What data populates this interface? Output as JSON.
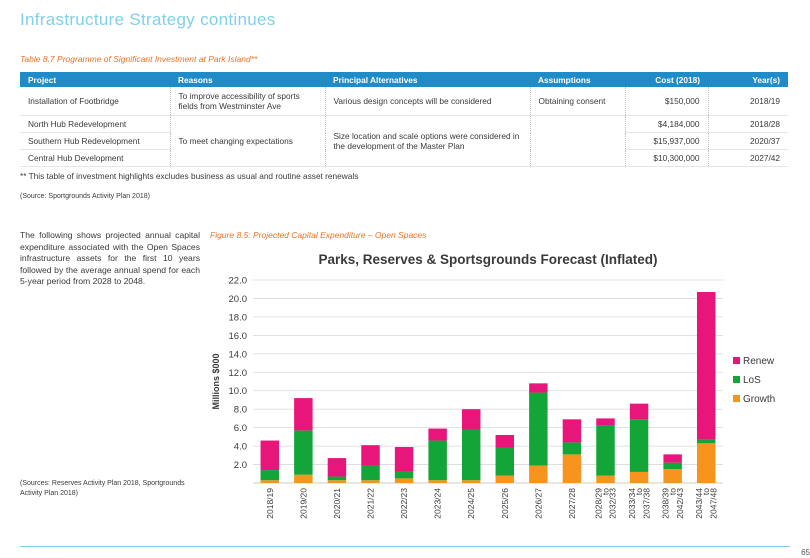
{
  "heading": "Infrastructure Strategy continues",
  "table_caption": "Table 8.7  Programme of Significant Investment at Park Island**",
  "table": {
    "headers": [
      "Project",
      "Reasons",
      "Principal Alternatives",
      "Assumptions",
      "Cost (2018)",
      "Year(s)"
    ],
    "rows": [
      {
        "project": "Installation of Footbridge",
        "reason": "To improve accessibility of sports fields from Westminster Ave",
        "alternatives": "Various design concepts will be considered",
        "assumptions": "Obtaining consent",
        "cost": "$150,000",
        "years": "2018/19"
      },
      {
        "project": "North Hub Redevelopment",
        "cost": "$4,184,000",
        "years": "2018/28"
      },
      {
        "project": "Southern Hub Redevelopment",
        "cost": "$15,937,000",
        "years": "2020/37"
      },
      {
        "project": "Central Hub Development",
        "cost": "$10,300,000",
        "years": "2027/42"
      }
    ],
    "group_reason": "To meet changing expectations",
    "group_alternatives": "Size location and scale options were considered in the development of the Master Plan"
  },
  "footnote": "** This table of investment highlights excludes business as usual and routine asset renewals",
  "source1": "(Source:  Sportgrounds Activity Plan 2018)",
  "intro_text": "The following shows projected annual capital expenditure associated with the Open Spaces infrastructure assets for the first 10 years followed by the average annual spend for each 5-year period from 2028 to 2048.",
  "sources2": "(Sources: Reserves Activity Plan 2018, Sportgrounds Activity Plan 2018)",
  "figure_caption": "Figure 8.5:  Projected Capital Expenditure – Open Spaces",
  "page_number": "65",
  "chart_data": {
    "type": "bar",
    "stacked": true,
    "title": "Parks, Reserves & Sportsgrounds Forecast (Inflated)",
    "ylabel": "Millions $000",
    "ylim": [
      0,
      22
    ],
    "yticks": [
      "2.0",
      "4.0",
      "6.0",
      "8.0",
      "10.0",
      "12.0",
      "14.0",
      "16.0",
      "18.0",
      "20.0",
      "22.0"
    ],
    "grid": true,
    "legend_position": "right",
    "categories": [
      "2018/19",
      "2019/20",
      "2020/21",
      "2021/22",
      "2022/23",
      "2023/24",
      "2024/25",
      "2025/26",
      "2026/27",
      "2027/28",
      "2028/29 to 2032/33",
      "2033/34 to 2037/38",
      "2038/39 to 2042/43",
      "2043/44 to 2047/48"
    ],
    "series": [
      {
        "name": "Growth",
        "color": "#f7941d",
        "values": [
          0.3,
          0.9,
          0.3,
          0.3,
          0.5,
          0.3,
          0.3,
          0.8,
          1.9,
          3.1,
          0.8,
          1.2,
          1.5,
          4.3
        ]
      },
      {
        "name": "LoS",
        "color": "#13a538",
        "values": [
          1.1,
          4.8,
          0.4,
          1.6,
          0.8,
          4.3,
          5.5,
          3.0,
          7.9,
          1.3,
          5.4,
          5.7,
          0.7,
          0.4
        ]
      },
      {
        "name": "Renew",
        "color": "#e8157a",
        "values": [
          3.2,
          3.5,
          2.0,
          2.2,
          2.6,
          1.3,
          2.2,
          1.4,
          1.0,
          2.5,
          0.8,
          1.7,
          0.9,
          16.0
        ]
      }
    ],
    "legend_order": [
      "Renew",
      "LoS",
      "Growth"
    ]
  }
}
